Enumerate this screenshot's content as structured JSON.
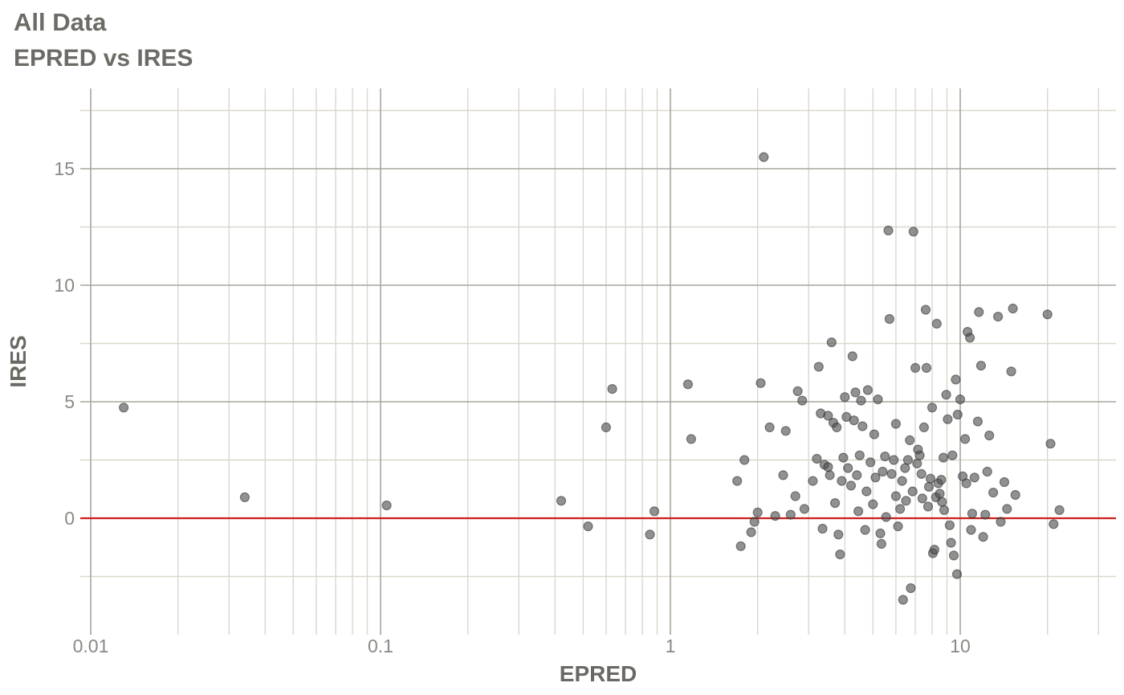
{
  "header": {
    "title": "All Data",
    "subtitle": "EPRED vs IRES"
  },
  "chart_data": {
    "type": "scatter",
    "title": "All Data",
    "subtitle": "EPRED vs IRES",
    "xlabel": "EPRED",
    "ylabel": "IRES",
    "x_scale": "log10",
    "xlim": [
      0.01,
      33
    ],
    "ylim": [
      -5,
      18.5
    ],
    "x_ticks": [
      0.01,
      0.1,
      1,
      10
    ],
    "x_tick_labels": [
      "0.01",
      "0.1",
      "1",
      "10"
    ],
    "y_ticks": [
      0,
      5,
      10,
      15
    ],
    "y_tick_labels": [
      "0",
      "5",
      "10",
      "15"
    ],
    "y_minor_ticks": [
      -2.5,
      2.5,
      7.5,
      12.5,
      17.5
    ],
    "grid": {
      "on": true,
      "major_color": "#a8a59e",
      "minor_color": "#dbd7ce"
    },
    "legend": "none",
    "reference_line": {
      "y": 0,
      "color": "#cc1f1f"
    },
    "point_style": {
      "fill": "#4d4d4d",
      "opacity": 0.62,
      "stroke": "#2e2e2e",
      "radius": 5.5
    },
    "text_colors": {
      "tick": "#8b8984",
      "axis_title": "#6b6963",
      "plot_title": "#6d6b66"
    },
    "points": [
      [
        0.013,
        4.75
      ],
      [
        0.034,
        0.9
      ],
      [
        0.105,
        0.55
      ],
      [
        0.42,
        0.75
      ],
      [
        0.52,
        -0.35
      ],
      [
        0.6,
        3.9
      ],
      [
        0.63,
        5.55
      ],
      [
        0.85,
        -0.7
      ],
      [
        0.88,
        0.3
      ],
      [
        1.15,
        5.75
      ],
      [
        1.18,
        3.4
      ],
      [
        1.7,
        1.6
      ],
      [
        1.75,
        -1.2
      ],
      [
        1.8,
        2.5
      ],
      [
        1.9,
        -0.6
      ],
      [
        1.95,
        -0.15
      ],
      [
        2.0,
        0.25
      ],
      [
        2.05,
        5.8
      ],
      [
        2.1,
        15.5
      ],
      [
        2.2,
        3.9
      ],
      [
        2.3,
        0.1
      ],
      [
        2.45,
        1.85
      ],
      [
        2.5,
        3.75
      ],
      [
        2.6,
        0.15
      ],
      [
        2.7,
        0.95
      ],
      [
        2.75,
        5.45
      ],
      [
        2.85,
        5.05
      ],
      [
        2.9,
        0.4
      ],
      [
        3.1,
        1.6
      ],
      [
        3.2,
        2.55
      ],
      [
        3.25,
        6.5
      ],
      [
        3.3,
        4.5
      ],
      [
        3.35,
        -0.45
      ],
      [
        3.4,
        2.3
      ],
      [
        3.5,
        2.2
      ],
      [
        3.5,
        4.4
      ],
      [
        3.55,
        1.85
      ],
      [
        3.6,
        7.55
      ],
      [
        3.65,
        4.1
      ],
      [
        3.7,
        0.65
      ],
      [
        3.75,
        3.9
      ],
      [
        3.8,
        -0.7
      ],
      [
        3.85,
        -1.55
      ],
      [
        3.9,
        1.6
      ],
      [
        3.95,
        2.6
      ],
      [
        4.0,
        5.2
      ],
      [
        4.05,
        4.35
      ],
      [
        4.1,
        2.15
      ],
      [
        4.2,
        1.4
      ],
      [
        4.25,
        6.95
      ],
      [
        4.3,
        4.2
      ],
      [
        4.35,
        5.4
      ],
      [
        4.4,
        1.85
      ],
      [
        4.45,
        0.3
      ],
      [
        4.5,
        2.7
      ],
      [
        4.55,
        5.05
      ],
      [
        4.6,
        3.95
      ],
      [
        4.7,
        -0.5
      ],
      [
        4.75,
        1.15
      ],
      [
        4.8,
        5.5
      ],
      [
        4.9,
        2.4
      ],
      [
        5.0,
        0.6
      ],
      [
        5.05,
        3.6
      ],
      [
        5.1,
        1.75
      ],
      [
        5.2,
        5.1
      ],
      [
        5.3,
        -0.65
      ],
      [
        5.35,
        -1.1
      ],
      [
        5.4,
        2.0
      ],
      [
        5.5,
        2.65
      ],
      [
        5.55,
        0.05
      ],
      [
        5.65,
        12.35
      ],
      [
        5.7,
        8.55
      ],
      [
        5.8,
        1.9
      ],
      [
        5.9,
        2.5
      ],
      [
        6.0,
        0.95
      ],
      [
        6.0,
        4.05
      ],
      [
        6.1,
        -0.35
      ],
      [
        6.2,
        0.4
      ],
      [
        6.3,
        1.6
      ],
      [
        6.35,
        -3.5
      ],
      [
        6.45,
        2.15
      ],
      [
        6.5,
        0.75
      ],
      [
        6.6,
        2.5
      ],
      [
        6.7,
        3.35
      ],
      [
        6.75,
        -3.0
      ],
      [
        6.85,
        1.15
      ],
      [
        6.9,
        12.3
      ],
      [
        7.0,
        6.45
      ],
      [
        7.1,
        2.35
      ],
      [
        7.15,
        2.95
      ],
      [
        7.25,
        2.7
      ],
      [
        7.35,
        1.9
      ],
      [
        7.4,
        0.85
      ],
      [
        7.5,
        3.9
      ],
      [
        7.6,
        8.95
      ],
      [
        7.65,
        6.45
      ],
      [
        7.75,
        0.5
      ],
      [
        7.8,
        1.35
      ],
      [
        7.9,
        1.7
      ],
      [
        8.0,
        4.75
      ],
      [
        8.05,
        -1.5
      ],
      [
        8.15,
        -1.35
      ],
      [
        8.25,
        0.9
      ],
      [
        8.3,
        8.35
      ],
      [
        8.4,
        1.5
      ],
      [
        8.5,
        1.05
      ],
      [
        8.6,
        1.65
      ],
      [
        8.65,
        0.7
      ],
      [
        8.75,
        2.6
      ],
      [
        8.8,
        0.35
      ],
      [
        8.95,
        5.3
      ],
      [
        9.05,
        4.25
      ],
      [
        9.2,
        -0.3
      ],
      [
        9.3,
        -1.05
      ],
      [
        9.4,
        2.7
      ],
      [
        9.5,
        -1.6
      ],
      [
        9.65,
        5.95
      ],
      [
        9.75,
        -2.4
      ],
      [
        9.8,
        4.45
      ],
      [
        10.0,
        5.1
      ],
      [
        10.2,
        1.8
      ],
      [
        10.4,
        3.4
      ],
      [
        10.5,
        1.5
      ],
      [
        10.6,
        8.0
      ],
      [
        10.8,
        7.75
      ],
      [
        10.9,
        -0.5
      ],
      [
        11.0,
        0.2
      ],
      [
        11.2,
        1.75
      ],
      [
        11.5,
        4.15
      ],
      [
        11.6,
        8.85
      ],
      [
        11.8,
        6.55
      ],
      [
        12.0,
        -0.8
      ],
      [
        12.2,
        0.15
      ],
      [
        12.4,
        2.0
      ],
      [
        12.6,
        3.55
      ],
      [
        13.0,
        1.1
      ],
      [
        13.5,
        8.65
      ],
      [
        13.8,
        -0.15
      ],
      [
        14.2,
        1.55
      ],
      [
        14.5,
        0.4
      ],
      [
        15.0,
        6.3
      ],
      [
        15.2,
        9.0
      ],
      [
        15.5,
        1.0
      ],
      [
        20.0,
        8.75
      ],
      [
        20.5,
        3.2
      ],
      [
        21.0,
        -0.25
      ],
      [
        22.0,
        0.35
      ]
    ]
  }
}
